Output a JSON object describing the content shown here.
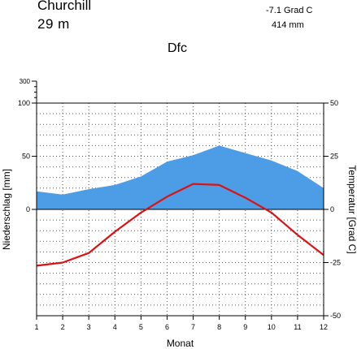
{
  "header": {
    "station": "Churchill",
    "elevation": "29  m",
    "mean_temperature": "-7.1 Grad C",
    "annual_precipitation": "414 mm",
    "climate_class": "Dfc"
  },
  "chart_data": {
    "type": "climate-diagram",
    "xlabel": "Monat",
    "ylabel_left": "Niederschlag [mm]",
    "ylabel_right": "Temperatur [Grad C]",
    "months": [
      1,
      2,
      3,
      4,
      5,
      6,
      7,
      8,
      9,
      10,
      11,
      12
    ],
    "precip_ticks": [
      0,
      50,
      100,
      300
    ],
    "temp_ticks": [
      -50,
      -25,
      0,
      25,
      50
    ],
    "precip_ylim": [
      0,
      100
    ],
    "temp_ylim": [
      -50,
      50
    ],
    "grid": true,
    "series": [
      {
        "type": "area",
        "unit": "mm",
        "color": "#4d9de6",
        "values": [
          17,
          14,
          19,
          23,
          31,
          45,
          51,
          60,
          53,
          46,
          36,
          20
        ]
      },
      {
        "type": "line",
        "unit": "Grad C",
        "color": "#dd1111",
        "values": [
          -26.5,
          -25,
          -20.5,
          -10.5,
          -1.5,
          6,
          12,
          11.5,
          5.5,
          -1.5,
          -12,
          -21.5
        ]
      }
    ]
  }
}
